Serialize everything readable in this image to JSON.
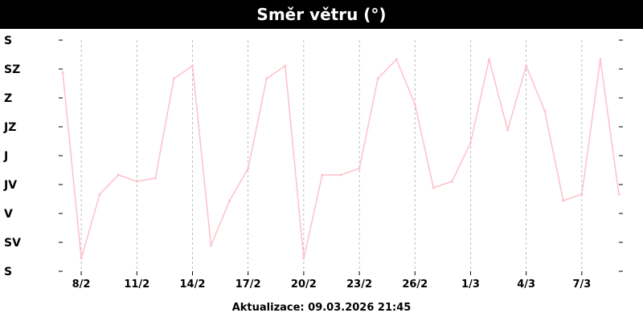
{
  "header": {
    "title": "Směr větru (°)"
  },
  "footer": {
    "updated": "Aktualizace: 09.03.2026 21:45"
  },
  "colors": {
    "series": "#ffc0cb",
    "grid": "#a0a0a0",
    "axis": "#000000"
  },
  "chart_data": {
    "type": "line",
    "title": "Směr větru (°)",
    "xlabel": "",
    "ylabel": "",
    "ylim": [
      0,
      360
    ],
    "yticks": [
      {
        "value": 360,
        "label": "S"
      },
      {
        "value": 315,
        "label": "SZ"
      },
      {
        "value": 270,
        "label": "Z"
      },
      {
        "value": 225,
        "label": "JZ"
      },
      {
        "value": 180,
        "label": "J"
      },
      {
        "value": 135,
        "label": "JV"
      },
      {
        "value": 90,
        "label": "V"
      },
      {
        "value": 45,
        "label": "SV"
      },
      {
        "value": 0,
        "label": "S"
      }
    ],
    "xlim": [
      "2026-02-07",
      "2026-03-09"
    ],
    "xticks": [
      {
        "date": "2026-02-08",
        "label": "8/2"
      },
      {
        "date": "2026-02-11",
        "label": "11/2"
      },
      {
        "date": "2026-02-14",
        "label": "14/2"
      },
      {
        "date": "2026-02-17",
        "label": "17/2"
      },
      {
        "date": "2026-02-20",
        "label": "20/2"
      },
      {
        "date": "2026-02-23",
        "label": "23/2"
      },
      {
        "date": "2026-02-26",
        "label": "26/2"
      },
      {
        "date": "2026-03-01",
        "label": "1/3"
      },
      {
        "date": "2026-03-04",
        "label": "4/3"
      },
      {
        "date": "2026-03-07",
        "label": "7/3"
      }
    ],
    "grid": true,
    "series": [
      {
        "x": [
          "2026-02-07",
          "2026-02-08",
          "2026-02-09",
          "2026-02-10",
          "2026-02-11",
          "2026-02-12",
          "2026-02-13",
          "2026-02-14",
          "2026-02-15",
          "2026-02-16",
          "2026-02-17",
          "2026-02-18",
          "2026-02-19",
          "2026-02-20",
          "2026-02-21",
          "2026-02-22",
          "2026-02-23",
          "2026-02-24",
          "2026-02-25",
          "2026-02-26",
          "2026-02-27",
          "2026-02-28",
          "2026-03-01",
          "2026-03-02",
          "2026-03-03",
          "2026-03-04",
          "2026-03-05",
          "2026-03-06",
          "2026-03-07",
          "2026-03-08",
          "2026-03-09"
        ],
        "values": [
          310,
          20,
          120,
          150,
          140,
          145,
          300,
          320,
          40,
          110,
          160,
          300,
          320,
          20,
          150,
          150,
          160,
          300,
          330,
          260,
          130,
          140,
          200,
          330,
          220,
          320,
          250,
          110,
          120,
          330,
          120
        ]
      }
    ]
  }
}
